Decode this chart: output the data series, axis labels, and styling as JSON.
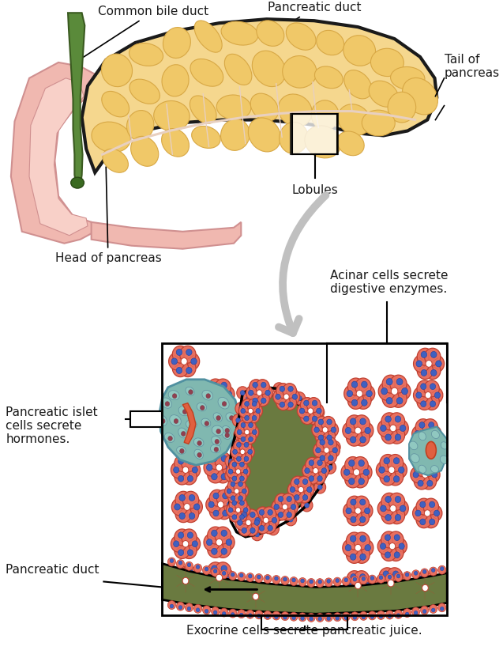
{
  "bg_color": "#ffffff",
  "labels": {
    "common_bile_duct": "Common bile duct",
    "pancreatic_duct_top": "Pancreatic duct",
    "tail_of_pancreas": "Tail of\npancreas",
    "lobules": "Lobules",
    "head_of_pancreas": "Head of pancreas",
    "acinar_cells": "Acinar cells secrete\ndigestive enzymes.",
    "pancreatic_islet": "Pancreatic islet\ncells secrete\nhormones.",
    "pancreatic_duct_bottom": "Pancreatic duct",
    "exocrine_cells": "Exocrine cells secrete pancreatic juice."
  },
  "colors": {
    "pancreas_fill": "#f5d78e",
    "pancreas_outline": "#1a1a1a",
    "duodenum_fill": "#f0b8b0",
    "duodenum_stroke": "#d09090",
    "bile_duct_fill": "#5a8a3a",
    "bile_duct_outline": "#3a5a20",
    "lobule_fill": "#f0c868",
    "lobule_stroke": "#d8a845",
    "acinar_fill": "#e87060",
    "acinar_outline": "#c04030",
    "nucleus_fill": "#4060c0",
    "islet_fill": "#80b8b0",
    "islet_outline": "#5090a0",
    "islet_cell_fill": "#90c8c0",
    "islet_cell_stroke": "#6090a0",
    "islet_nuc_fill": "#904050",
    "pancreatic_duct_fill": "#6a7a40",
    "arrow_color": "#c0c0c0",
    "text_color": "#1a1a1a",
    "white": "#ffffff",
    "black": "#000000"
  }
}
